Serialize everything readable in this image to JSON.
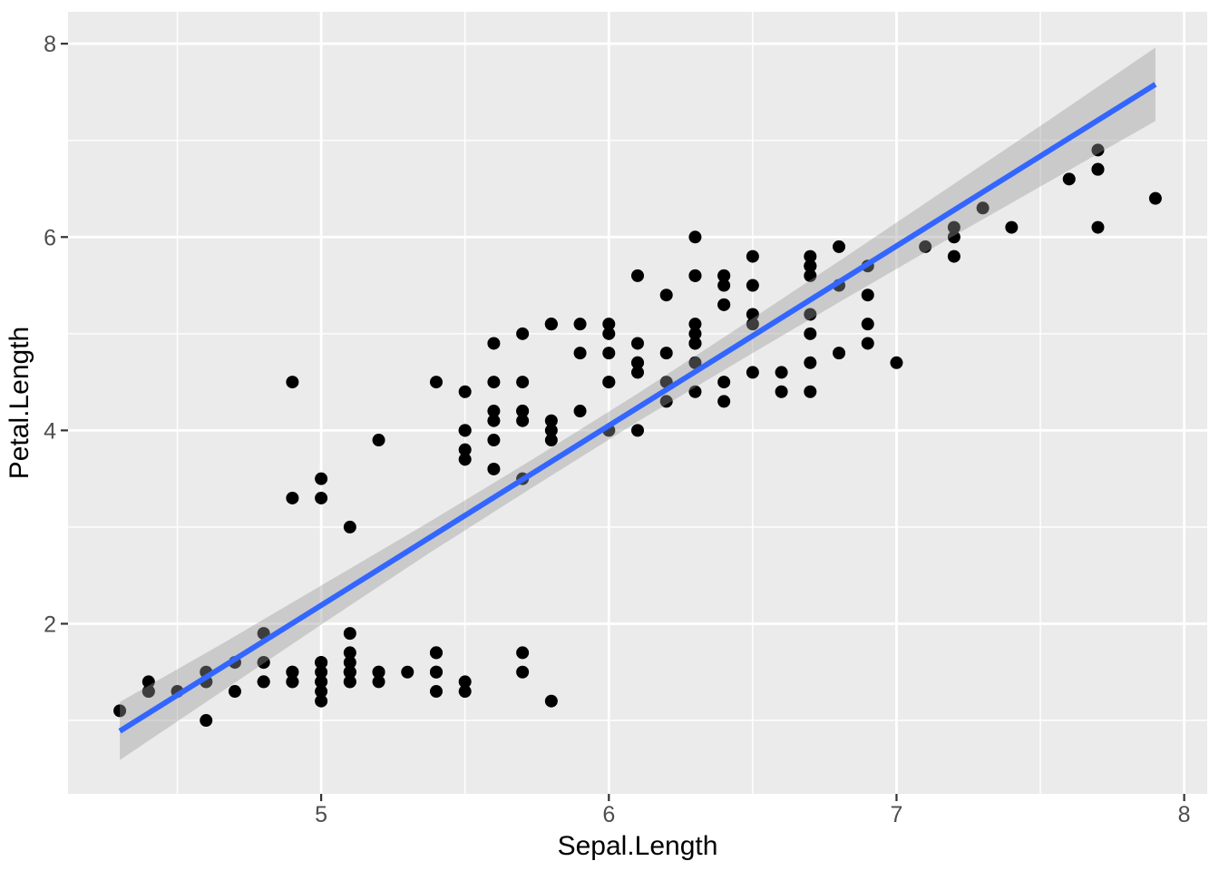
{
  "chart_data": {
    "type": "scatter",
    "title": "",
    "xlabel": "Sepal.Length",
    "ylabel": "Petal.Length",
    "xlim": [
      4.12,
      8.08
    ],
    "ylim": [
      0.24,
      8.33
    ],
    "x_ticks": [
      5,
      6,
      7,
      8
    ],
    "y_ticks": [
      2,
      4,
      6,
      8
    ],
    "x_minor_ticks": [
      4.5,
      5.5,
      6.5,
      7.5
    ],
    "y_minor_ticks": [
      1,
      3,
      5,
      7
    ],
    "grid": "on",
    "legend": "none",
    "points": [
      [
        5.1,
        1.4
      ],
      [
        4.9,
        1.4
      ],
      [
        4.7,
        1.3
      ],
      [
        4.6,
        1.5
      ],
      [
        5.0,
        1.4
      ],
      [
        5.4,
        1.7
      ],
      [
        4.6,
        1.4
      ],
      [
        5.0,
        1.5
      ],
      [
        4.4,
        1.4
      ],
      [
        4.9,
        1.5
      ],
      [
        5.4,
        1.5
      ],
      [
        4.8,
        1.6
      ],
      [
        4.8,
        1.4
      ],
      [
        4.3,
        1.1
      ],
      [
        5.8,
        1.2
      ],
      [
        5.7,
        1.5
      ],
      [
        5.4,
        1.3
      ],
      [
        5.1,
        1.4
      ],
      [
        5.7,
        1.7
      ],
      [
        5.1,
        1.5
      ],
      [
        5.4,
        1.7
      ],
      [
        5.1,
        1.5
      ],
      [
        4.6,
        1.0
      ],
      [
        5.1,
        1.7
      ],
      [
        4.8,
        1.9
      ],
      [
        5.0,
        1.6
      ],
      [
        5.0,
        1.6
      ],
      [
        5.2,
        1.5
      ],
      [
        5.2,
        1.4
      ],
      [
        4.7,
        1.6
      ],
      [
        4.8,
        1.6
      ],
      [
        5.4,
        1.5
      ],
      [
        5.2,
        1.5
      ],
      [
        5.5,
        1.4
      ],
      [
        4.9,
        1.5
      ],
      [
        5.0,
        1.2
      ],
      [
        5.5,
        1.3
      ],
      [
        4.9,
        1.4
      ],
      [
        4.4,
        1.3
      ],
      [
        5.1,
        1.5
      ],
      [
        5.0,
        1.3
      ],
      [
        4.5,
        1.3
      ],
      [
        4.4,
        1.3
      ],
      [
        5.0,
        1.6
      ],
      [
        5.1,
        1.9
      ],
      [
        4.8,
        1.4
      ],
      [
        5.1,
        1.6
      ],
      [
        4.6,
        1.4
      ],
      [
        5.3,
        1.5
      ],
      [
        5.0,
        1.4
      ],
      [
        7.0,
        4.7
      ],
      [
        6.4,
        4.5
      ],
      [
        6.9,
        4.9
      ],
      [
        5.5,
        4.0
      ],
      [
        6.5,
        4.6
      ],
      [
        5.7,
        4.5
      ],
      [
        6.3,
        4.7
      ],
      [
        4.9,
        3.3
      ],
      [
        6.6,
        4.6
      ],
      [
        5.2,
        3.9
      ],
      [
        5.0,
        3.5
      ],
      [
        5.9,
        4.2
      ],
      [
        6.0,
        4.0
      ],
      [
        6.1,
        4.7
      ],
      [
        5.6,
        3.6
      ],
      [
        6.7,
        4.4
      ],
      [
        5.6,
        4.5
      ],
      [
        5.8,
        4.1
      ],
      [
        6.2,
        4.5
      ],
      [
        5.6,
        3.9
      ],
      [
        5.9,
        4.8
      ],
      [
        6.1,
        4.0
      ],
      [
        6.3,
        4.9
      ],
      [
        6.1,
        4.7
      ],
      [
        6.4,
        4.3
      ],
      [
        6.6,
        4.4
      ],
      [
        6.8,
        4.8
      ],
      [
        6.7,
        5.0
      ],
      [
        6.0,
        4.5
      ],
      [
        5.7,
        3.5
      ],
      [
        5.5,
        3.8
      ],
      [
        5.5,
        3.7
      ],
      [
        5.8,
        3.9
      ],
      [
        6.0,
        5.1
      ],
      [
        5.4,
        4.5
      ],
      [
        6.0,
        4.5
      ],
      [
        6.7,
        4.7
      ],
      [
        6.3,
        4.4
      ],
      [
        5.6,
        4.1
      ],
      [
        5.5,
        4.0
      ],
      [
        5.5,
        4.4
      ],
      [
        6.1,
        4.6
      ],
      [
        5.8,
        4.0
      ],
      [
        5.0,
        3.3
      ],
      [
        5.6,
        4.2
      ],
      [
        5.7,
        4.2
      ],
      [
        5.7,
        4.2
      ],
      [
        6.2,
        4.3
      ],
      [
        5.1,
        3.0
      ],
      [
        5.7,
        4.1
      ],
      [
        6.3,
        6.0
      ],
      [
        5.8,
        5.1
      ],
      [
        7.1,
        5.9
      ],
      [
        6.3,
        5.6
      ],
      [
        6.5,
        5.8
      ],
      [
        7.6,
        6.6
      ],
      [
        4.9,
        4.5
      ],
      [
        7.3,
        6.3
      ],
      [
        6.7,
        5.8
      ],
      [
        7.2,
        6.1
      ],
      [
        6.5,
        5.1
      ],
      [
        6.4,
        5.3
      ],
      [
        6.8,
        5.5
      ],
      [
        5.7,
        5.0
      ],
      [
        5.8,
        5.1
      ],
      [
        6.4,
        5.3
      ],
      [
        6.5,
        5.5
      ],
      [
        7.7,
        6.7
      ],
      [
        7.7,
        6.9
      ],
      [
        6.0,
        5.0
      ],
      [
        6.9,
        5.7
      ],
      [
        5.6,
        4.9
      ],
      [
        7.7,
        6.7
      ],
      [
        6.3,
        4.9
      ],
      [
        6.7,
        5.7
      ],
      [
        7.2,
        6.0
      ],
      [
        6.2,
        4.8
      ],
      [
        6.1,
        4.9
      ],
      [
        6.4,
        5.6
      ],
      [
        7.2,
        5.8
      ],
      [
        7.4,
        6.1
      ],
      [
        7.9,
        6.4
      ],
      [
        6.4,
        5.6
      ],
      [
        6.3,
        5.1
      ],
      [
        6.1,
        5.6
      ],
      [
        7.7,
        6.1
      ],
      [
        6.3,
        5.6
      ],
      [
        6.4,
        5.5
      ],
      [
        6.0,
        4.8
      ],
      [
        6.9,
        5.4
      ],
      [
        6.7,
        5.6
      ],
      [
        6.9,
        5.1
      ],
      [
        5.8,
        5.1
      ],
      [
        6.8,
        5.9
      ],
      [
        6.7,
        5.7
      ],
      [
        6.7,
        5.2
      ],
      [
        6.3,
        5.0
      ],
      [
        6.5,
        5.2
      ],
      [
        6.2,
        5.4
      ],
      [
        5.9,
        5.1
      ]
    ],
    "regression_line": {
      "slope": 1.8584,
      "intercept": -7.1014,
      "x_start": 4.3,
      "x_end": 7.9
    },
    "confidence_band": {
      "x": [
        4.3,
        4.66,
        5.02,
        5.38,
        5.74,
        6.1,
        6.46,
        6.82,
        7.18,
        7.54,
        7.9
      ],
      "lower": [
        0.59,
        1.31,
        2.03,
        2.74,
        3.42,
        4.09,
        4.73,
        5.36,
        5.98,
        6.59,
        7.2
      ],
      "upper": [
        1.19,
        1.8,
        2.43,
        3.06,
        3.71,
        4.38,
        5.08,
        5.79,
        6.51,
        7.23,
        7.96
      ]
    }
  },
  "style": {
    "figure_background": "#FFFFFF",
    "panel_background": "#EBEBEB",
    "grid_color": "#FFFFFF",
    "point_color": "#000000",
    "line_color": "#3366FF",
    "band_color": "#999999",
    "band_opacity": 0.4,
    "tick_label_color": "#4D4D4D",
    "tick_mark_color": "#333333",
    "axis_title_color": "#000000"
  }
}
